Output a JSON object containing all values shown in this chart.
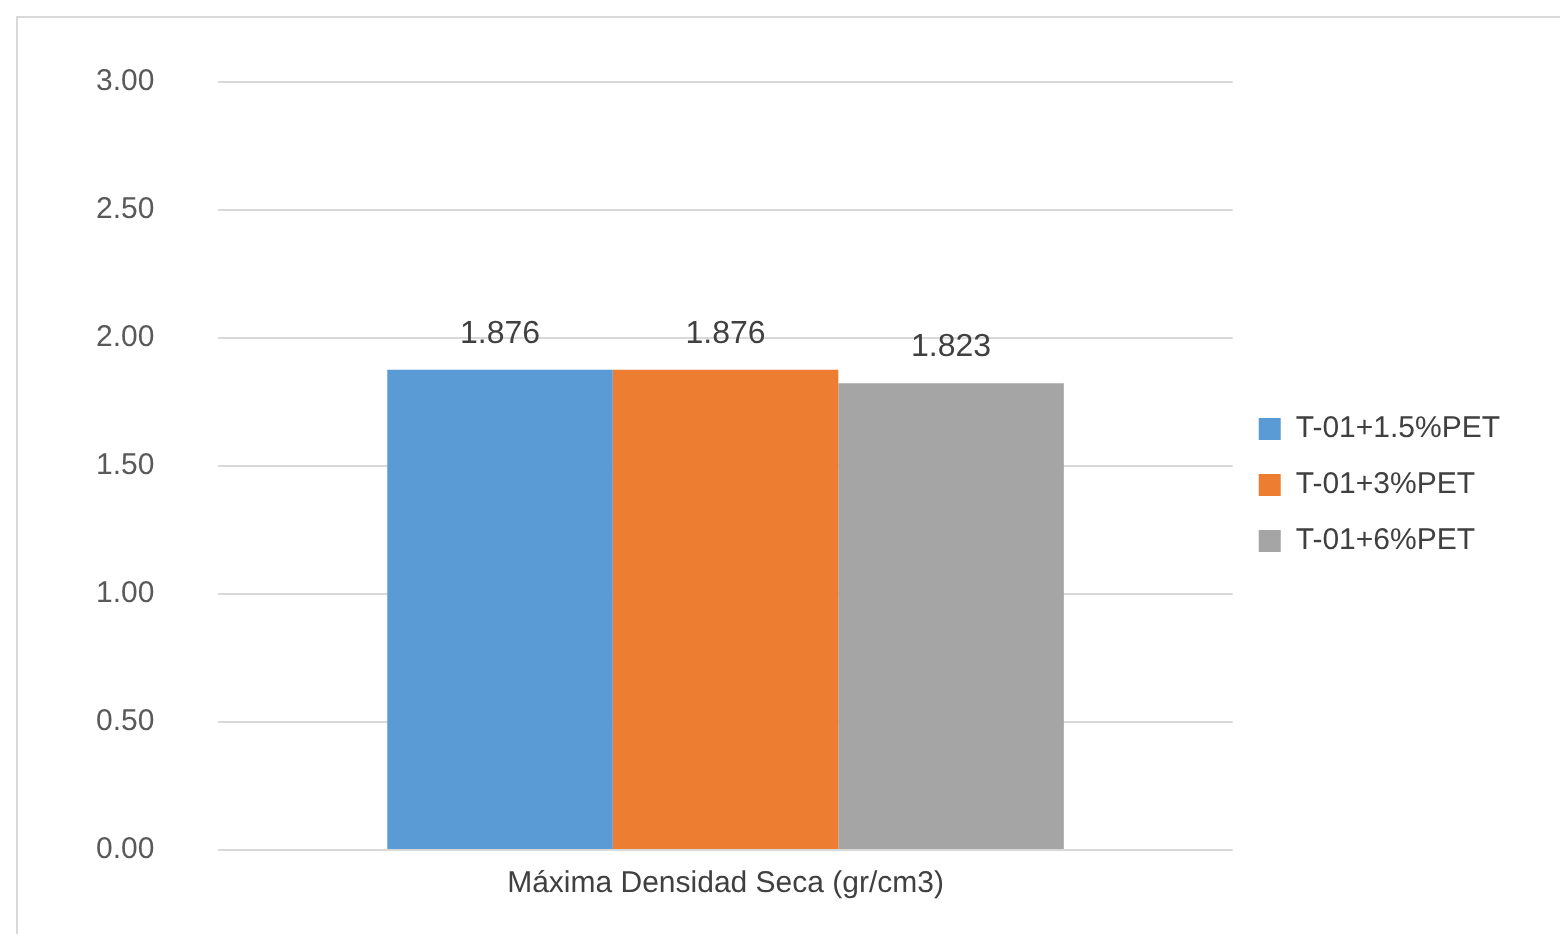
{
  "chart_data": {
    "type": "bar",
    "categories": [
      "Máxima Densidad Seca (gr/cm3)"
    ],
    "series": [
      {
        "name": "T-01+1.5%PET",
        "color": "#5b9bd5",
        "values": [
          1.876
        ]
      },
      {
        "name": "T-01+3%PET",
        "color": "#ed7d31",
        "values": [
          1.876
        ]
      },
      {
        "name": "T-01+6%PET",
        "color": "#a5a5a5",
        "values": [
          1.823
        ]
      }
    ],
    "ylim": [
      0,
      3
    ],
    "yticks": [
      {
        "value": 0,
        "label": "0.00"
      },
      {
        "value": 0.5,
        "label": "0.50"
      },
      {
        "value": 1,
        "label": "1.00"
      },
      {
        "value": 1.5,
        "label": "1.50"
      },
      {
        "value": 2,
        "label": "2.00"
      },
      {
        "value": 2.5,
        "label": "2.50"
      },
      {
        "value": 3,
        "label": "3.00"
      }
    ],
    "grid": "y",
    "legend": "right",
    "data_labels": true
  }
}
